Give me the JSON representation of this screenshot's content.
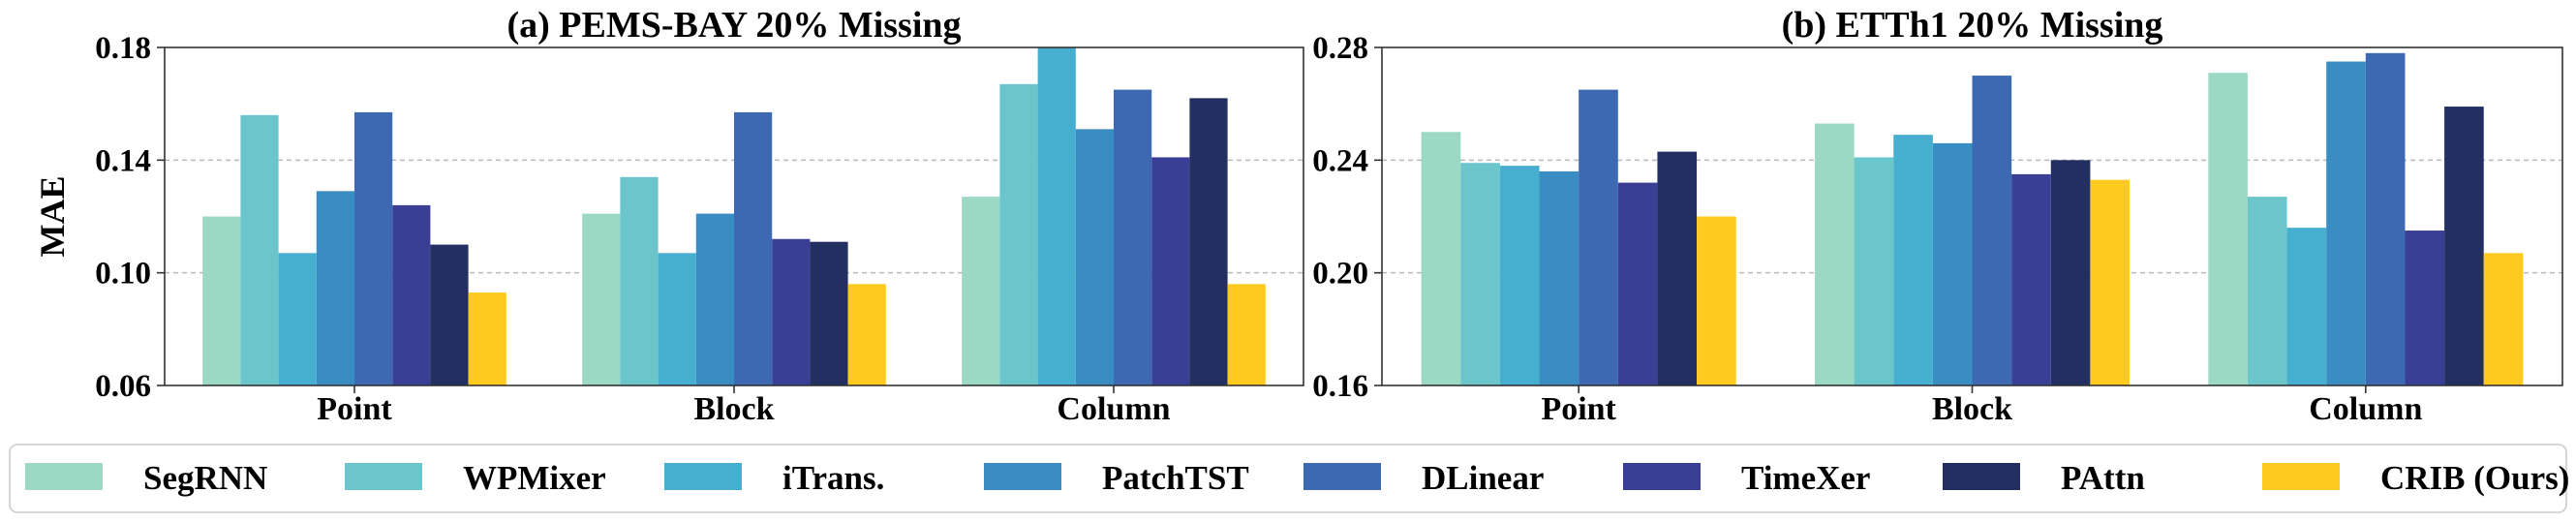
{
  "chart_data": [
    {
      "type": "bar",
      "title": "(a) PEMS-BAY 20% Missing",
      "xlabel": "",
      "ylabel": "MAE",
      "ylim": [
        0.06,
        0.18
      ],
      "yticks": [
        "0.06",
        "0.10",
        "0.14",
        "0.18"
      ],
      "grid": true,
      "categories": [
        "Point",
        "Block",
        "Column"
      ],
      "series": [
        {
          "name": "SegRNN",
          "values": [
            0.12,
            0.121,
            0.127
          ]
        },
        {
          "name": "WPMixer",
          "values": [
            0.156,
            0.134,
            0.167
          ]
        },
        {
          "name": "iTrans.",
          "values": [
            0.107,
            0.107,
            0.18
          ]
        },
        {
          "name": "PatchTST",
          "values": [
            0.129,
            0.121,
            0.151
          ]
        },
        {
          "name": "DLinear",
          "values": [
            0.157,
            0.157,
            0.165
          ]
        },
        {
          "name": "TimeXer",
          "values": [
            0.124,
            0.112,
            0.141
          ]
        },
        {
          "name": "PAttn",
          "values": [
            0.11,
            0.111,
            0.162
          ]
        },
        {
          "name": "CRIB (Ours)",
          "values": [
            0.093,
            0.096,
            0.096
          ]
        }
      ]
    },
    {
      "type": "bar",
      "title": "(b) ETTh1 20% Missing",
      "xlabel": "",
      "ylabel": "",
      "ylim": [
        0.16,
        0.28
      ],
      "yticks": [
        "0.16",
        "0.20",
        "0.24",
        "0.28"
      ],
      "grid": true,
      "categories": [
        "Point",
        "Block",
        "Column"
      ],
      "series": [
        {
          "name": "SegRNN",
          "values": [
            0.25,
            0.253,
            0.271
          ]
        },
        {
          "name": "WPMixer",
          "values": [
            0.239,
            0.241,
            0.227
          ]
        },
        {
          "name": "iTrans.",
          "values": [
            0.238,
            0.249,
            0.216
          ]
        },
        {
          "name": "PatchTST",
          "values": [
            0.236,
            0.246,
            0.275
          ]
        },
        {
          "name": "DLinear",
          "values": [
            0.265,
            0.27,
            0.278
          ]
        },
        {
          "name": "TimeXer",
          "values": [
            0.232,
            0.235,
            0.215
          ]
        },
        {
          "name": "PAttn",
          "values": [
            0.243,
            0.24,
            0.259
          ]
        },
        {
          "name": "CRIB (Ours)",
          "values": [
            0.22,
            0.233,
            0.207
          ]
        }
      ]
    }
  ],
  "legend": {
    "placement": "bottom",
    "entries": [
      {
        "name": "SegRNN",
        "color": "#9bd9c5"
      },
      {
        "name": "WPMixer",
        "color": "#6bc6cc"
      },
      {
        "name": "iTrans.",
        "color": "#46aece"
      },
      {
        "name": "PatchTST",
        "color": "#3a8dc2"
      },
      {
        "name": "DLinear",
        "color": "#3d68b2"
      },
      {
        "name": "TimeXer",
        "color": "#3a3f95"
      },
      {
        "name": "PAttn",
        "color": "#222f60"
      },
      {
        "name": "CRIB (Ours)",
        "color": "#ffca1f"
      }
    ]
  }
}
